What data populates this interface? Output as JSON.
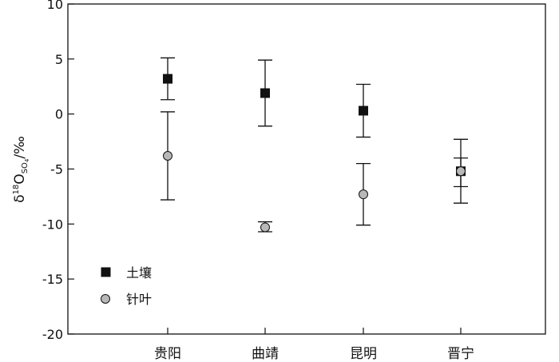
{
  "chart_data": {
    "type": "scatter",
    "title": "",
    "xlabel": "",
    "ylabel": {
      "delta": "δ",
      "sup": "18",
      "O": "O",
      "sub": "SO",
      "subsub": "4",
      "unit": "/‰"
    },
    "categories": [
      "贵阳",
      "曲靖",
      "昆明",
      "晋宁"
    ],
    "ylim": [
      -20,
      10
    ],
    "yticks": [
      10,
      5,
      0,
      -5,
      -10,
      -15,
      -20
    ],
    "ytick_labels": [
      "10",
      "5",
      "0",
      "-5",
      "-10",
      "-15",
      "-20"
    ],
    "grid": false,
    "legend_position": "bottom-left",
    "series": [
      {
        "name": "土壤",
        "marker": "square",
        "color": "#111111",
        "values": [
          3.2,
          1.9,
          0.3,
          -5.2
        ],
        "err_low": [
          1.3,
          -1.1,
          -2.1,
          -6.6
        ],
        "err_high": [
          5.1,
          4.9,
          2.7,
          -4.0
        ]
      },
      {
        "name": "针叶",
        "marker": "circle",
        "color": "#b8b8b8",
        "values": [
          -3.8,
          -10.3,
          -7.3,
          -5.2
        ],
        "err_low": [
          -7.8,
          -10.7,
          -10.1,
          -8.1
        ],
        "err_high": [
          0.2,
          -9.8,
          -4.5,
          -2.3
        ]
      }
    ]
  }
}
